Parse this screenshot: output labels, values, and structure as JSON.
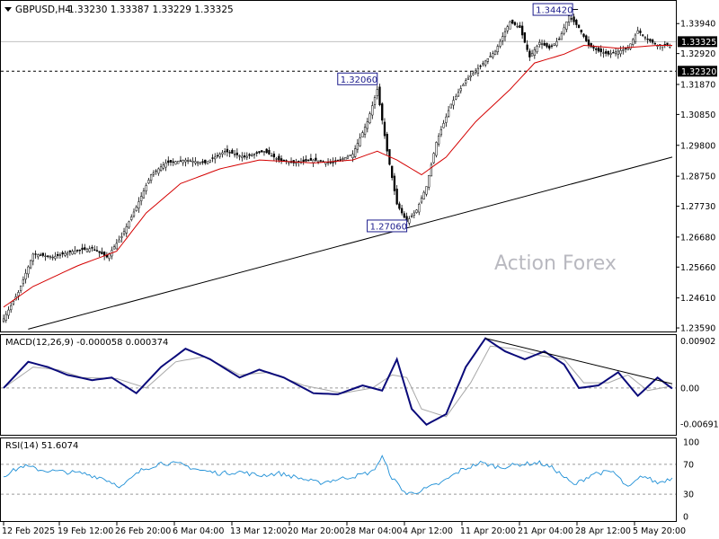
{
  "header": {
    "symbol_tf": "GBPUSD,H4",
    "ohlc": "1.33230 1.33387 1.33229 1.33325",
    "watermark": "Action Forex"
  },
  "chart_data": [
    {
      "type": "candlestick",
      "name": "price",
      "y_axis_ticks": [
        "1.33940",
        "1.32920",
        "1.31870",
        "1.30850",
        "1.29800",
        "1.28750",
        "1.27730",
        "1.26680",
        "1.25660",
        "1.24610",
        "1.23590"
      ],
      "ylim": [
        1.235,
        1.3465
      ],
      "x_ticks": [
        "12 Feb 2025",
        "19 Feb 12:00",
        "26 Feb 20:00",
        "6 Mar 04:00",
        "13 Mar 12:00",
        "20 Mar 20:00",
        "28 Mar 04:00",
        "4 Apr 12:00",
        "11 Apr 20:00",
        "21 Apr 04:00",
        "28 Apr 12:00",
        "5 May 20:00"
      ],
      "current_price": {
        "label": "1.33325",
        "value": 1.33325
      },
      "support_line": {
        "label": "1.32320",
        "value": 1.3232
      },
      "annotations": [
        {
          "label": "1.34420",
          "value": 1.3442,
          "at": "21 Apr"
        },
        {
          "label": "1.32060",
          "value": 1.3206,
          "at": "2 Apr"
        },
        {
          "label": "1.27060",
          "value": 1.2706,
          "at": "8 Apr"
        }
      ],
      "path": [
        {
          "i": 0,
          "v": 1.239
        },
        {
          "i": 6,
          "v": 1.248
        },
        {
          "i": 12,
          "v": 1.261
        },
        {
          "i": 20,
          "v": 1.26
        },
        {
          "i": 28,
          "v": 1.262
        },
        {
          "i": 36,
          "v": 1.263
        },
        {
          "i": 42,
          "v": 1.26
        },
        {
          "i": 48,
          "v": 1.267
        },
        {
          "i": 54,
          "v": 1.277
        },
        {
          "i": 60,
          "v": 1.288
        },
        {
          "i": 66,
          "v": 1.292
        },
        {
          "i": 74,
          "v": 1.293
        },
        {
          "i": 82,
          "v": 1.292
        },
        {
          "i": 90,
          "v": 1.296
        },
        {
          "i": 98,
          "v": 1.294
        },
        {
          "i": 106,
          "v": 1.296
        },
        {
          "i": 112,
          "v": 1.293
        },
        {
          "i": 118,
          "v": 1.292
        },
        {
          "i": 126,
          "v": 1.293
        },
        {
          "i": 134,
          "v": 1.292
        },
        {
          "i": 142,
          "v": 1.295
        },
        {
          "i": 148,
          "v": 1.306
        },
        {
          "i": 152,
          "v": 1.317
        },
        {
          "i": 156,
          "v": 1.296
        },
        {
          "i": 160,
          "v": 1.278
        },
        {
          "i": 164,
          "v": 1.272
        },
        {
          "i": 168,
          "v": 1.276
        },
        {
          "i": 172,
          "v": 1.284
        },
        {
          "i": 176,
          "v": 1.299
        },
        {
          "i": 182,
          "v": 1.312
        },
        {
          "i": 188,
          "v": 1.32
        },
        {
          "i": 194,
          "v": 1.325
        },
        {
          "i": 200,
          "v": 1.33
        },
        {
          "i": 206,
          "v": 1.34
        },
        {
          "i": 210,
          "v": 1.338
        },
        {
          "i": 214,
          "v": 1.328
        },
        {
          "i": 218,
          "v": 1.333
        },
        {
          "i": 222,
          "v": 1.331
        },
        {
          "i": 226,
          "v": 1.334
        },
        {
          "i": 230,
          "v": 1.342
        },
        {
          "i": 234,
          "v": 1.338
        },
        {
          "i": 238,
          "v": 1.332
        },
        {
          "i": 242,
          "v": 1.33
        },
        {
          "i": 246,
          "v": 1.329
        },
        {
          "i": 250,
          "v": 1.33
        },
        {
          "i": 254,
          "v": 1.331
        },
        {
          "i": 258,
          "v": 1.337
        },
        {
          "i": 262,
          "v": 1.334
        },
        {
          "i": 266,
          "v": 1.332
        }
      ],
      "ma_path": [
        {
          "i": 0,
          "v": 1.243
        },
        {
          "i": 12,
          "v": 1.25
        },
        {
          "i": 30,
          "v": 1.257
        },
        {
          "i": 46,
          "v": 1.262
        },
        {
          "i": 58,
          "v": 1.275
        },
        {
          "i": 72,
          "v": 1.285
        },
        {
          "i": 88,
          "v": 1.29
        },
        {
          "i": 104,
          "v": 1.293
        },
        {
          "i": 126,
          "v": 1.292
        },
        {
          "i": 142,
          "v": 1.293
        },
        {
          "i": 152,
          "v": 1.296
        },
        {
          "i": 160,
          "v": 1.293
        },
        {
          "i": 170,
          "v": 1.288
        },
        {
          "i": 180,
          "v": 1.294
        },
        {
          "i": 192,
          "v": 1.306
        },
        {
          "i": 206,
          "v": 1.317
        },
        {
          "i": 216,
          "v": 1.326
        },
        {
          "i": 228,
          "v": 1.329
        },
        {
          "i": 236,
          "v": 1.332
        },
        {
          "i": 250,
          "v": 1.331
        },
        {
          "i": 266,
          "v": 1.332
        }
      ],
      "trendline": {
        "from": {
          "i": 10,
          "v": 1.2355
        },
        "to": {
          "i": 272,
          "v": 1.294
        }
      },
      "bars": 272
    },
    {
      "type": "line",
      "name": "macd",
      "title": "MACD(12,26,9) -0.000058 0.000374",
      "y_axis_ticks": [
        "0.00902",
        "0.00",
        "-0.006915"
      ],
      "ylim": [
        -0.0086,
        0.0096
      ],
      "macd_path": [
        {
          "i": 0,
          "v": 0.0
        },
        {
          "i": 10,
          "v": 0.005
        },
        {
          "i": 18,
          "v": 0.004
        },
        {
          "i": 26,
          "v": 0.0025
        },
        {
          "i": 36,
          "v": 0.0015
        },
        {
          "i": 44,
          "v": 0.002
        },
        {
          "i": 54,
          "v": -0.001
        },
        {
          "i": 64,
          "v": 0.004
        },
        {
          "i": 74,
          "v": 0.0075
        },
        {
          "i": 84,
          "v": 0.0055
        },
        {
          "i": 96,
          "v": 0.002
        },
        {
          "i": 104,
          "v": 0.0035
        },
        {
          "i": 114,
          "v": 0.002
        },
        {
          "i": 126,
          "v": -0.001
        },
        {
          "i": 136,
          "v": -0.0012
        },
        {
          "i": 146,
          "v": 0.0005
        },
        {
          "i": 154,
          "v": -0.0005
        },
        {
          "i": 160,
          "v": 0.0055
        },
        {
          "i": 166,
          "v": -0.004
        },
        {
          "i": 172,
          "v": -0.007
        },
        {
          "i": 180,
          "v": -0.005
        },
        {
          "i": 188,
          "v": 0.004
        },
        {
          "i": 196,
          "v": 0.0095
        },
        {
          "i": 204,
          "v": 0.007
        },
        {
          "i": 212,
          "v": 0.0055
        },
        {
          "i": 220,
          "v": 0.007
        },
        {
          "i": 228,
          "v": 0.0045
        },
        {
          "i": 234,
          "v": 0.0
        },
        {
          "i": 242,
          "v": 0.0005
        },
        {
          "i": 250,
          "v": 0.003
        },
        {
          "i": 258,
          "v": -0.0015
        },
        {
          "i": 266,
          "v": 0.002
        },
        {
          "i": 272,
          "v": -0.0001
        }
      ],
      "signal_path": [
        {
          "i": 0,
          "v": 0.0
        },
        {
          "i": 12,
          "v": 0.004
        },
        {
          "i": 22,
          "v": 0.0035
        },
        {
          "i": 32,
          "v": 0.002
        },
        {
          "i": 46,
          "v": 0.0018
        },
        {
          "i": 58,
          "v": 0.0
        },
        {
          "i": 70,
          "v": 0.005
        },
        {
          "i": 82,
          "v": 0.006
        },
        {
          "i": 96,
          "v": 0.0025
        },
        {
          "i": 108,
          "v": 0.003
        },
        {
          "i": 122,
          "v": 0.0005
        },
        {
          "i": 138,
          "v": -0.001
        },
        {
          "i": 150,
          "v": 0.0
        },
        {
          "i": 158,
          "v": 0.0025
        },
        {
          "i": 164,
          "v": 0.002
        },
        {
          "i": 170,
          "v": -0.004
        },
        {
          "i": 180,
          "v": -0.0055
        },
        {
          "i": 190,
          "v": 0.001
        },
        {
          "i": 198,
          "v": 0.008
        },
        {
          "i": 208,
          "v": 0.0075
        },
        {
          "i": 218,
          "v": 0.0062
        },
        {
          "i": 228,
          "v": 0.0055
        },
        {
          "i": 236,
          "v": 0.001
        },
        {
          "i": 246,
          "v": 0.001
        },
        {
          "i": 254,
          "v": 0.0025
        },
        {
          "i": 262,
          "v": -0.0005
        },
        {
          "i": 272,
          "v": 0.0004
        }
      ],
      "trendline": {
        "from": {
          "i": 196,
          "v": 0.0095
        },
        "to": {
          "i": 272,
          "v": 0.0008
        }
      }
    },
    {
      "type": "line",
      "name": "rsi",
      "title": "RSI(14) 51.6074",
      "y_axis_ticks": [
        "100",
        "70",
        "30",
        "0"
      ],
      "ylim": [
        0,
        100
      ],
      "levels": [
        70,
        30
      ],
      "rsi_path": [
        {
          "i": 0,
          "v": 55
        },
        {
          "i": 8,
          "v": 68
        },
        {
          "i": 16,
          "v": 62
        },
        {
          "i": 24,
          "v": 60
        },
        {
          "i": 32,
          "v": 58
        },
        {
          "i": 40,
          "v": 52
        },
        {
          "i": 48,
          "v": 40
        },
        {
          "i": 56,
          "v": 62
        },
        {
          "i": 64,
          "v": 72
        },
        {
          "i": 72,
          "v": 70
        },
        {
          "i": 80,
          "v": 62
        },
        {
          "i": 88,
          "v": 58
        },
        {
          "i": 96,
          "v": 60
        },
        {
          "i": 104,
          "v": 55
        },
        {
          "i": 112,
          "v": 58
        },
        {
          "i": 120,
          "v": 52
        },
        {
          "i": 128,
          "v": 45
        },
        {
          "i": 136,
          "v": 50
        },
        {
          "i": 144,
          "v": 55
        },
        {
          "i": 150,
          "v": 60
        },
        {
          "i": 154,
          "v": 80
        },
        {
          "i": 158,
          "v": 52
        },
        {
          "i": 164,
          "v": 30
        },
        {
          "i": 170,
          "v": 35
        },
        {
          "i": 178,
          "v": 45
        },
        {
          "i": 186,
          "v": 62
        },
        {
          "i": 194,
          "v": 72
        },
        {
          "i": 202,
          "v": 66
        },
        {
          "i": 210,
          "v": 70
        },
        {
          "i": 218,
          "v": 72
        },
        {
          "i": 224,
          "v": 64
        },
        {
          "i": 232,
          "v": 42
        },
        {
          "i": 240,
          "v": 58
        },
        {
          "i": 248,
          "v": 60
        },
        {
          "i": 254,
          "v": 38
        },
        {
          "i": 260,
          "v": 55
        },
        {
          "i": 266,
          "v": 45
        },
        {
          "i": 272,
          "v": 52
        }
      ]
    }
  ]
}
